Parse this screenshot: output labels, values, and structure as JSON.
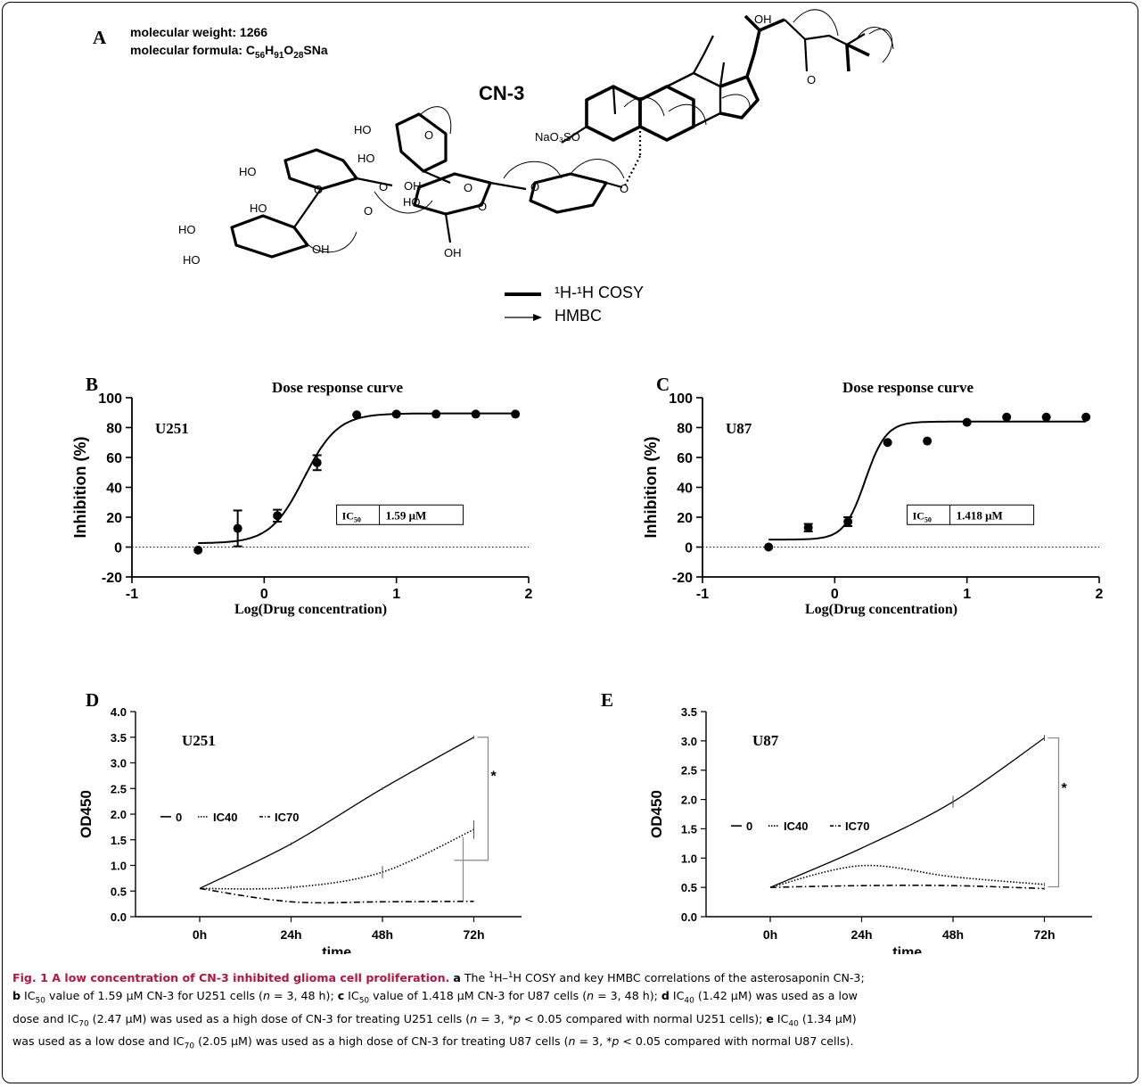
{
  "panel_a": {
    "letter": "A",
    "mw_label": "molecular weight: 1266",
    "mf_prefix": "molecular formula: C",
    "mf_c": "56",
    "mf_h": "91",
    "mf_o": "28",
    "mf_suffix": "SNa",
    "compound": "CN-3",
    "legend_cosy": "¹H-¹H COSY",
    "legend_hmbc": "HMBC",
    "atom_labels": [
      "HO",
      "HO",
      "HO",
      "HO",
      "HO",
      "HO",
      "HO",
      "OH",
      "OH",
      "OH",
      "OH",
      "O",
      "O",
      "O",
      "O",
      "O",
      "O",
      "O",
      "O",
      "NaO₃SO",
      "OH",
      "O"
    ]
  },
  "chart_data": [
    {
      "type": "scatter",
      "letter": "B",
      "title": "Dose response curve",
      "cell_line": "U251",
      "xlabel": "Log(Drug concentration)",
      "ylabel": "Inhibition (%)",
      "xlim": [
        -1,
        2
      ],
      "ylim": [
        -20,
        100
      ],
      "xticks": [
        -1,
        0,
        1,
        2
      ],
      "yticks": [
        -20,
        0,
        20,
        40,
        60,
        80,
        100
      ],
      "ic50_label": "IC50",
      "ic50_value": "1.59 μM",
      "points": [
        {
          "x": -0.5,
          "y": -2,
          "err": 0
        },
        {
          "x": -0.2,
          "y": 12.5,
          "err": 12
        },
        {
          "x": 0.1,
          "y": 21,
          "err": 4
        },
        {
          "x": 0.4,
          "y": 56.5,
          "err": 5
        },
        {
          "x": 0.7,
          "y": 88.5,
          "err": 0
        },
        {
          "x": 1.0,
          "y": 89,
          "err": 0
        },
        {
          "x": 1.3,
          "y": 89,
          "err": 0
        },
        {
          "x": 1.6,
          "y": 89,
          "err": 0
        },
        {
          "x": 1.9,
          "y": 89,
          "err": 0
        }
      ],
      "fit": {
        "bottom": 2.5,
        "top": 89.5,
        "logec50": 0.3,
        "hill": 3.4
      }
    },
    {
      "type": "scatter",
      "letter": "C",
      "title": "Dose response curve",
      "cell_line": "U87",
      "xlabel": "Log(Drug concentration)",
      "ylabel": "Inhibition (%)",
      "xlim": [
        -1,
        2
      ],
      "ylim": [
        -20,
        100
      ],
      "xticks": [
        -1,
        0,
        1,
        2
      ],
      "yticks": [
        -20,
        0,
        20,
        40,
        60,
        80,
        100
      ],
      "ic50_label": "IC50",
      "ic50_value": "1.418 μM",
      "points": [
        {
          "x": -0.5,
          "y": 0,
          "err": 0
        },
        {
          "x": -0.2,
          "y": 13,
          "err": 2.5
        },
        {
          "x": 0.1,
          "y": 17,
          "err": 3
        },
        {
          "x": 0.4,
          "y": 70,
          "err": 0
        },
        {
          "x": 0.7,
          "y": 71,
          "err": 0
        },
        {
          "x": 1.0,
          "y": 83.5,
          "err": 0
        },
        {
          "x": 1.3,
          "y": 87,
          "err": 0
        },
        {
          "x": 1.6,
          "y": 87,
          "err": 0
        },
        {
          "x": 1.9,
          "y": 87,
          "err": 0
        }
      ],
      "fit": {
        "bottom": 5,
        "top": 84,
        "logec50": 0.23,
        "hill": 5.5
      }
    },
    {
      "type": "line",
      "letter": "D",
      "cell_line": "U251",
      "xlabel": "time",
      "ylabel": "OD450",
      "categories": [
        "0h",
        "24h",
        "48h",
        "72h"
      ],
      "ylim": [
        0,
        4
      ],
      "yticks": [
        "0.0",
        "0.5",
        "1.0",
        "1.5",
        "2.0",
        "2.5",
        "3.0",
        "3.5",
        "4.0"
      ],
      "series": [
        {
          "name": "0",
          "values": [
            0.55,
            1.42,
            2.5,
            3.5
          ],
          "err": [
            0,
            0.03,
            0.03,
            0.03
          ],
          "style": "solid"
        },
        {
          "name": "IC40",
          "values": [
            0.55,
            0.57,
            0.87,
            1.7
          ],
          "err": [
            0,
            0.04,
            0.12,
            0.18
          ],
          "style": "dotted"
        },
        {
          "name": "IC70",
          "values": [
            0.55,
            0.29,
            0.29,
            0.3
          ],
          "err": [
            0,
            0,
            0,
            0
          ],
          "style": "dashdot"
        }
      ],
      "significance": "*"
    },
    {
      "type": "line",
      "letter": "E",
      "cell_line": "U87",
      "xlabel": "time",
      "ylabel": "OD450",
      "categories": [
        "0h",
        "24h",
        "48h",
        "72h"
      ],
      "ylim": [
        0,
        3.5
      ],
      "yticks": [
        "0.0",
        "0.5",
        "1.0",
        "1.5",
        "2.0",
        "2.5",
        "3.0",
        "3.5"
      ],
      "series": [
        {
          "name": "0",
          "values": [
            0.5,
            1.17,
            1.96,
            3.05
          ],
          "err": [
            0,
            0,
            0.1,
            0.05
          ],
          "style": "solid"
        },
        {
          "name": "IC40",
          "values": [
            0.5,
            0.87,
            0.68,
            0.55
          ],
          "err": [
            0,
            0,
            0,
            0.03
          ],
          "style": "dotted"
        },
        {
          "name": "IC70",
          "values": [
            0.5,
            0.53,
            0.53,
            0.48
          ],
          "err": [
            0,
            0,
            0.02,
            0.02
          ],
          "style": "dashdot"
        }
      ],
      "significance": "*"
    }
  ],
  "caption": {
    "title": "Fig. 1 A low concentration of CN-3 inhibited glioma cell proliferation.",
    "lines": [
      [
        {
          "t": " "
        },
        {
          "t": "a",
          "b": true
        },
        {
          "t": " The "
        },
        {
          "t": "1",
          "sup": true
        },
        {
          "t": "H–"
        },
        {
          "t": "1",
          "sup": true
        },
        {
          "t": "H COSY and key HMBC correlations of the asterosaponin CN-3;"
        }
      ],
      [
        {
          "t": "b",
          "b": true
        },
        {
          "t": " IC"
        },
        {
          "t": "50",
          "sub": true
        },
        {
          "t": " value of 1.59 μM CN-3 for U251 cells ("
        },
        {
          "t": "n",
          "i": true
        },
        {
          "t": " = 3, 48 h); "
        },
        {
          "t": "c",
          "b": true
        },
        {
          "t": " IC"
        },
        {
          "t": "50",
          "sub": true
        },
        {
          "t": " value of 1.418 μM CN-3 for U87 cells ("
        },
        {
          "t": "n",
          "i": true
        },
        {
          "t": " = 3, 48 h); "
        },
        {
          "t": "d",
          "b": true
        },
        {
          "t": " IC"
        },
        {
          "t": "40",
          "sub": true
        },
        {
          "t": " (1.42 μM) was used as a low"
        }
      ],
      [
        {
          "t": "dose and IC"
        },
        {
          "t": "70",
          "sub": true
        },
        {
          "t": " (2.47 μM) was used as a high dose of CN-3 for treating U251 cells ("
        },
        {
          "t": "n",
          "i": true
        },
        {
          "t": " = 3, *"
        },
        {
          "t": "p",
          "i": true
        },
        {
          "t": " < 0.05 compared with normal U251 cells); "
        },
        {
          "t": "e",
          "b": true
        },
        {
          "t": " IC"
        },
        {
          "t": "40",
          "sub": true
        },
        {
          "t": " (1.34 μM)"
        }
      ],
      [
        {
          "t": "was used as a low dose and IC"
        },
        {
          "t": "70",
          "sub": true
        },
        {
          "t": " (2.05 μM) was used as a high dose of CN-3 for treating U87 cells ("
        },
        {
          "t": "n",
          "i": true
        },
        {
          "t": " = 3, *"
        },
        {
          "t": "p",
          "i": true
        },
        {
          "t": " < 0.05 compared with normal U87 cells)."
        }
      ]
    ]
  }
}
